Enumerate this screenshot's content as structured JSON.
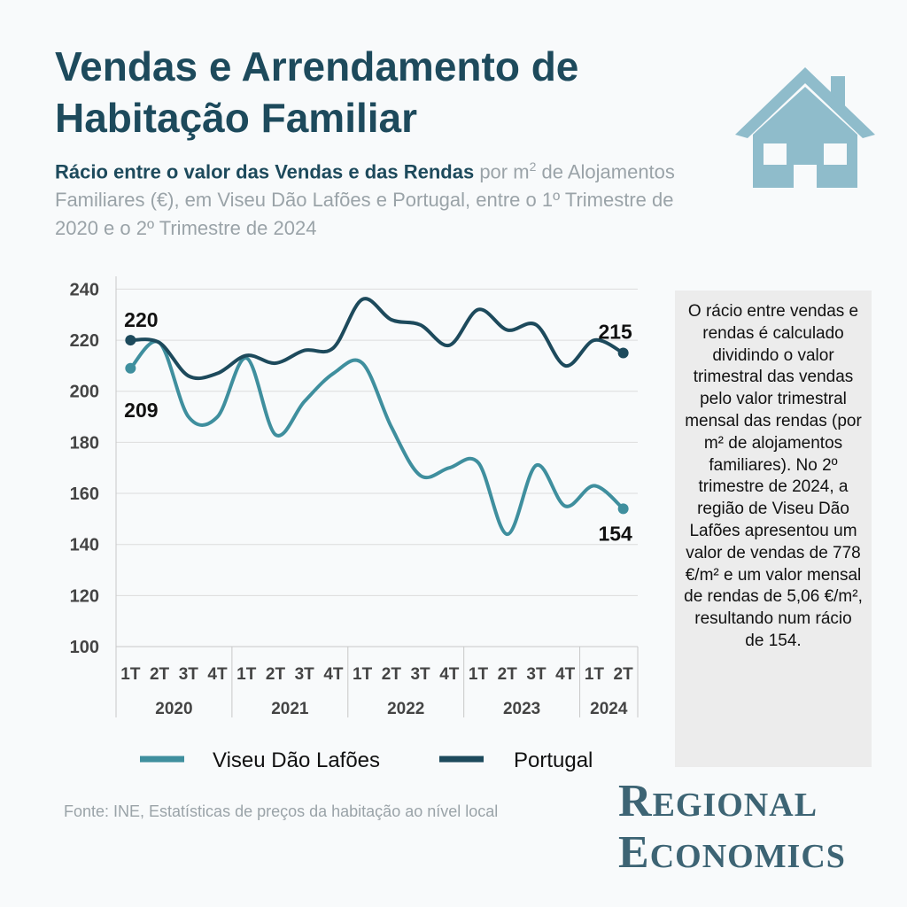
{
  "header": {
    "title": "Vendas e Arrendamento de Habitação Familiar",
    "subtitle_bold": "Rácio entre o valor das Vendas e das Rendas",
    "subtitle_pre_sup": " por m",
    "subtitle_sup": "2",
    "subtitle_rest": " de Alojamentos Familiares (€), em Viseu Dão Lafões e Portugal, entre o 1º Trimestre de 2020 e o 2º Trimestre de 2024"
  },
  "note": "O rácio entre vendas e rendas é calculado dividindo o valor trimestral das vendas pelo valor trimestral mensal das rendas (por m² de alojamentos familiares). No 2º trimestre de 2024, a região de Viseu Dão Lafões apresentou um valor de vendas de 778 €/m² e um valor mensal de rendas de 5,06 €/m², resultando num rácio de 154.",
  "source": "Fonte: INE, Estatísticas de preços da habitação ao nível local",
  "brand": {
    "line1_cap": "R",
    "line1_rest": "EGIONAL",
    "line2_cap": "E",
    "line2_rest": "CONOMICS"
  },
  "icon": "house-icon",
  "colors": {
    "viseu": "#3f8f9e",
    "portugal": "#1d4a5c",
    "house": "#8fbccb",
    "title": "#1d4a5c"
  },
  "chart_data": {
    "type": "line",
    "categories": [
      "1T",
      "2T",
      "3T",
      "4T",
      "1T",
      "2T",
      "3T",
      "4T",
      "1T",
      "2T",
      "3T",
      "4T",
      "1T",
      "2T",
      "3T",
      "4T",
      "1T",
      "2T"
    ],
    "years": [
      {
        "label": "2020",
        "count": 4
      },
      {
        "label": "2021",
        "count": 4
      },
      {
        "label": "2022",
        "count": 4
      },
      {
        "label": "2023",
        "count": 4
      },
      {
        "label": "2024",
        "count": 2
      }
    ],
    "series": [
      {
        "name": "Viseu Dão Lafões",
        "color": "#3f8f9e",
        "values": [
          209,
          219,
          190,
          190,
          213,
          183,
          196,
          207,
          211,
          186,
          167,
          170,
          172,
          144,
          171,
          155,
          163,
          154
        ],
        "end_labels": [
          "209",
          "154"
        ]
      },
      {
        "name": "Portugal",
        "color": "#1d4a5c",
        "values": [
          220,
          219,
          206,
          207,
          214,
          211,
          216,
          217,
          236,
          228,
          226,
          218,
          232,
          224,
          226,
          210,
          220,
          215
        ],
        "end_labels": [
          "220",
          "215"
        ]
      }
    ],
    "yticks": [
      100,
      120,
      140,
      160,
      180,
      200,
      220,
      240
    ],
    "ylim": [
      100,
      245
    ],
    "legend": "bottom"
  }
}
